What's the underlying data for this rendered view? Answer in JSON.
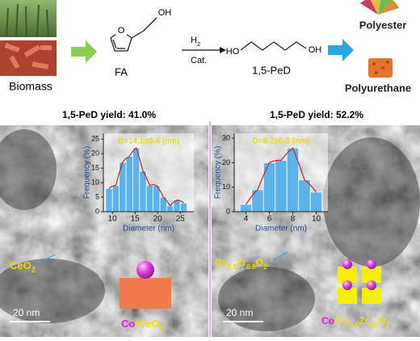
{
  "scheme": {
    "biomass": "Biomass",
    "fa": "FA",
    "fa_oh": "OH",
    "h2": [
      "H",
      "2"
    ],
    "cat": "Cat.",
    "ped_ho": "HO",
    "ped_oh": "OH",
    "ped": "1,5-PeD",
    "polyester": "Polyester",
    "polyurethane": "Polyurethane"
  },
  "panels": [
    {
      "yield": "1,5-PeD yield: 41.0%",
      "support": [
        "CeO",
        "2"
      ],
      "metal": "Co",
      "catalyst_support": [
        "/CeO",
        "2"
      ],
      "scale": "20 nm",
      "histogram": {
        "type": "bar",
        "title": "D=14.1±0.4 (nm)",
        "x_label": "Diameter (nm)",
        "y_label": "Frequency (%)",
        "bins": [
          8.5,
          10,
          11.5,
          13,
          14.5,
          16,
          17.5,
          19,
          20.5,
          22,
          23.5,
          25,
          26.5
        ],
        "values": [
          8,
          9,
          17,
          19,
          22,
          14,
          9,
          9,
          5,
          2,
          4,
          3
        ],
        "color": "#5ab4ea",
        "xlim": [
          8,
          28
        ],
        "xticks": [
          10,
          15,
          20,
          25
        ],
        "ylim": [
          0,
          27
        ],
        "yticks": [
          0,
          5,
          10,
          15,
          20,
          25
        ]
      }
    },
    {
      "yield": "1,5-PeD yield: 52.2%",
      "support": [
        "Ce",
        "0.5",
        "Zr",
        "0.5",
        "O",
        "2"
      ],
      "metal": "Co",
      "catalyst_support": [
        "/Ce",
        "0.5",
        "Zr",
        "0.5",
        "O",
        "2"
      ],
      "scale": "20 nm",
      "histogram": {
        "type": "bar",
        "title": "D=6.7±0.3 (nm)",
        "x_label": "Diameter (nm)",
        "y_label": "Frequency (%)",
        "bins": [
          3.5,
          4.5,
          5.5,
          6.5,
          7.5,
          8.5,
          9.5,
          10.5
        ],
        "values": [
          3,
          9,
          20,
          21,
          26,
          13,
          8
        ],
        "color": "#5ab4ea",
        "xlim": [
          3,
          11
        ],
        "xticks": [
          4,
          6,
          8,
          10
        ],
        "ylim": [
          0,
          32
        ],
        "yticks": [
          0,
          10,
          20,
          30
        ]
      }
    }
  ]
}
